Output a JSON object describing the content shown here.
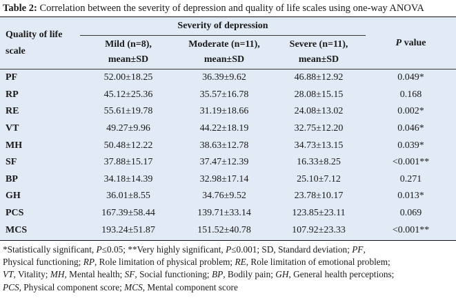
{
  "caption": {
    "label": "Table 2:",
    "text": " Correlation between the severity of depression and quality of life scales using one-way ANOVA"
  },
  "header": {
    "qol_line1": "Quality of life",
    "qol_line2": "scale",
    "severity": "Severity of depression",
    "mild_line1": "Mild (n=8),",
    "mild_line2": "mean±SD",
    "moderate_line1": "Moderate (n=11),",
    "moderate_line2": "mean±SD",
    "severe_line1": "Severe (n=11),",
    "severe_line2": "mean±SD",
    "p_italic": "P",
    "p_rest": " value"
  },
  "rows": [
    {
      "scale": "PF",
      "mild": "52.00±18.25",
      "moderate": "36.39±9.62",
      "severe": "46.88±12.92",
      "p": "0.049*"
    },
    {
      "scale": "RP",
      "mild": "45.12±25.36",
      "moderate": "35.57±16.78",
      "severe": "28.08±15.15",
      "p": "0.168"
    },
    {
      "scale": "RE",
      "mild": "55.61±19.78",
      "moderate": "31.19±18.66",
      "severe": "24.08±13.02",
      "p": "0.002*"
    },
    {
      "scale": "VT",
      "mild": "49.27±9.96",
      "moderate": "44.22±18.19",
      "severe": "32.75±12.20",
      "p": "0.046*"
    },
    {
      "scale": "MH",
      "mild": "50.48±12.22",
      "moderate": "38.63±12.78",
      "severe": "34.73±13.15",
      "p": "0.039*"
    },
    {
      "scale": "SF",
      "mild": "37.88±15.17",
      "moderate": "37.47±12.39",
      "severe": "16.33±8.25",
      "p": "<0.001**"
    },
    {
      "scale": "BP",
      "mild": "34.18±14.39",
      "moderate": "32.98±17.14",
      "severe": "25.10±7.12",
      "p": "0.271"
    },
    {
      "scale": "GH",
      "mild": "36.01±8.55",
      "moderate": "34.76±9.52",
      "severe": "23.78±10.17",
      "p": "0.013*"
    },
    {
      "scale": "PCS",
      "mild": "167.39±58.44",
      "moderate": "139.71±33.14",
      "severe": "123.85±23.11",
      "p": "0.069"
    },
    {
      "scale": "MCS",
      "mild": "193.24±51.87",
      "moderate": "151.52±40.78",
      "severe": "107.92±23.33",
      "p": "<0.001**"
    }
  ],
  "footnote": {
    "l1_a": "*Statistically significant, ",
    "l1_p1": "P",
    "l1_b": "≤0.05; **Very highly significant, ",
    "l1_p2": "P",
    "l1_c": "≤0.001; SD, Standard deviation; ",
    "l1_pf": "PF",
    "l1_d": ",",
    "l2_a": "Physical functioning; ",
    "l2_rp": "RP",
    "l2_b": ", Role limitation of physical problem; ",
    "l2_re": "RE",
    "l2_c": ", Role limitation of emotional problem;",
    "l3_vt": "VT",
    "l3_a": ", Vitality; ",
    "l3_mh": "MH",
    "l3_b": ", Mental health; ",
    "l3_sf": "SF",
    "l3_c": ", Social functioning; ",
    "l3_bp": "BP",
    "l3_d": ", Bodily pain; ",
    "l3_gh": "GH",
    "l3_e": ", General health perceptions;",
    "l4_pcs": "PCS",
    "l4_a": ", Physical component score; ",
    "l4_mcs": "MCS",
    "l4_b": ", Mental component score"
  }
}
